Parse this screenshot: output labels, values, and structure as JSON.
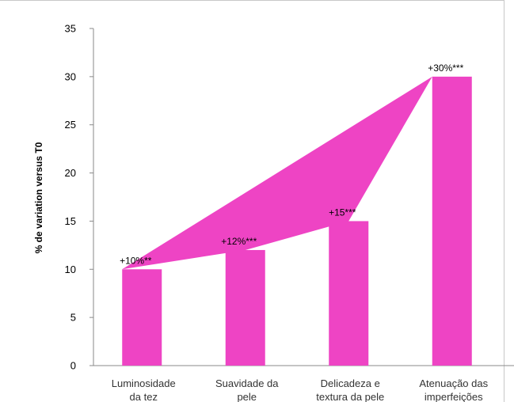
{
  "chart_data": {
    "type": "bar",
    "ylabel": "% de variation versus T0",
    "ylim": [
      0,
      35
    ],
    "yticks": [
      0,
      5,
      10,
      15,
      20,
      25,
      30,
      35
    ],
    "grid": false,
    "bar_color": "#ee44c4",
    "categories": [
      [
        "Luminosidade",
        "da tez"
      ],
      [
        "Suavidade da",
        "pele"
      ],
      [
        "Delicadeza e",
        "textura da pele"
      ],
      [
        "Atenuação das",
        "imperfeições"
      ]
    ],
    "values": [
      10,
      12,
      15,
      30
    ],
    "data_labels": [
      "+10%**",
      "+12%***",
      "+15***",
      "+30%***"
    ]
  }
}
